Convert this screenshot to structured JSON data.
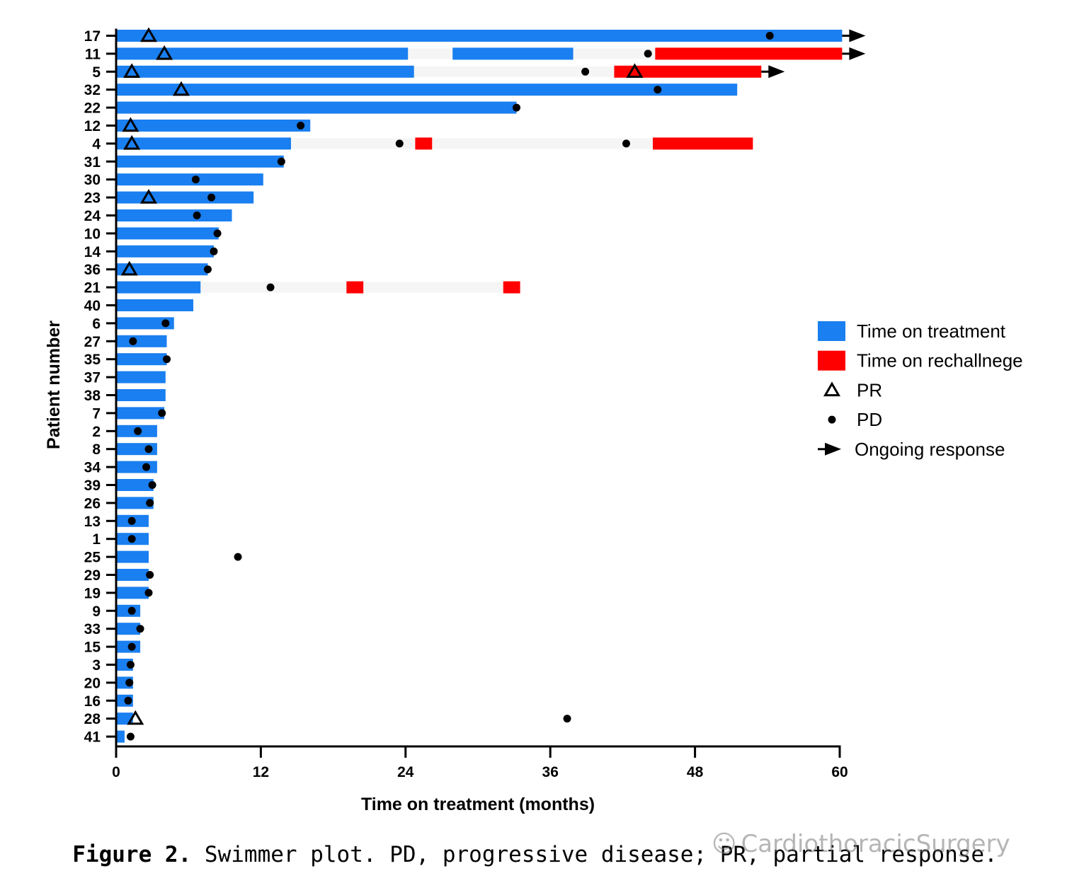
{
  "chart_data": {
    "type": "swimmer",
    "xlabel": "Time on treatment (months)",
    "ylabel": "Patient number",
    "xlim": [
      0,
      60
    ],
    "xticks": [
      0,
      12,
      24,
      36,
      48,
      60
    ],
    "legend": {
      "position": "right",
      "entries": [
        {
          "key": "treatment",
          "label": "Time on treatment"
        },
        {
          "key": "rechallenge",
          "label": "Time on rechallnege"
        },
        {
          "key": "pr",
          "label": "PR"
        },
        {
          "key": "pd",
          "label": "PD"
        },
        {
          "key": "ongoing",
          "label": "Ongoing response"
        }
      ]
    },
    "colors": {
      "treatment": "#1a7ff0",
      "rechallenge": "#ff0000",
      "marker": "#000000",
      "gap": "#f5f5f5"
    },
    "patients": [
      {
        "id": "17",
        "treatment": [
          [
            0,
            60.2
          ]
        ],
        "rechallenge": [],
        "pr": [
          2.7
        ],
        "pd": [
          54.2
        ],
        "ongoing": true
      },
      {
        "id": "11",
        "treatment": [
          [
            0,
            24.2
          ],
          [
            27.9,
            37.9
          ]
        ],
        "rechallenge": [
          [
            44.7,
            60.2
          ]
        ],
        "pr": [
          4.0
        ],
        "pd": [
          44.1
        ],
        "ongoing": true
      },
      {
        "id": "5",
        "treatment": [
          [
            0,
            24.7
          ]
        ],
        "rechallenge": [
          [
            41.3,
            53.5
          ]
        ],
        "pr": [
          1.3,
          43.0
        ],
        "pd": [
          38.9
        ],
        "ongoing": true
      },
      {
        "id": "32",
        "treatment": [
          [
            0,
            51.5
          ]
        ],
        "rechallenge": [],
        "pr": [
          5.4
        ],
        "pd": [
          44.9
        ],
        "ongoing": false
      },
      {
        "id": "22",
        "treatment": [
          [
            0,
            33.2
          ]
        ],
        "rechallenge": [],
        "pr": [],
        "pd": [
          33.2
        ],
        "ongoing": false
      },
      {
        "id": "12",
        "treatment": [
          [
            0,
            16.1
          ]
        ],
        "rechallenge": [],
        "pr": [
          1.2
        ],
        "pd": [
          15.3
        ],
        "ongoing": false
      },
      {
        "id": "4",
        "treatment": [
          [
            0,
            14.5
          ]
        ],
        "rechallenge": [
          [
            24.8,
            26.2
          ],
          [
            44.5,
            52.8
          ]
        ],
        "pr": [
          1.3
        ],
        "pd": [
          23.5,
          42.3
        ],
        "ongoing": false
      },
      {
        "id": "31",
        "treatment": [
          [
            0,
            13.9
          ]
        ],
        "rechallenge": [],
        "pr": [],
        "pd": [
          13.7
        ],
        "ongoing": false
      },
      {
        "id": "30",
        "treatment": [
          [
            0,
            12.2
          ]
        ],
        "rechallenge": [],
        "pr": [],
        "pd": [
          6.6
        ],
        "ongoing": false
      },
      {
        "id": "23",
        "treatment": [
          [
            0,
            11.4
          ]
        ],
        "rechallenge": [],
        "pr": [
          2.7
        ],
        "pd": [
          7.9
        ],
        "ongoing": false
      },
      {
        "id": "24",
        "treatment": [
          [
            0,
            9.6
          ]
        ],
        "rechallenge": [],
        "pr": [],
        "pd": [
          6.7
        ],
        "ongoing": false
      },
      {
        "id": "10",
        "treatment": [
          [
            0,
            8.5
          ]
        ],
        "rechallenge": [],
        "pr": [],
        "pd": [
          8.4
        ],
        "ongoing": false
      },
      {
        "id": "14",
        "treatment": [
          [
            0,
            8.1
          ]
        ],
        "rechallenge": [],
        "pr": [],
        "pd": [
          8.1
        ],
        "ongoing": false
      },
      {
        "id": "36",
        "treatment": [
          [
            0,
            7.6
          ]
        ],
        "rechallenge": [],
        "pr": [
          1.1
        ],
        "pd": [
          7.6
        ],
        "ongoing": false
      },
      {
        "id": "21",
        "treatment": [
          [
            0,
            7.0
          ]
        ],
        "rechallenge": [
          [
            19.1,
            20.5
          ],
          [
            32.1,
            33.5
          ]
        ],
        "pr": [],
        "pd": [
          12.8
        ],
        "ongoing": false
      },
      {
        "id": "40",
        "treatment": [
          [
            0,
            6.4
          ]
        ],
        "rechallenge": [],
        "pr": [],
        "pd": [],
        "ongoing": false
      },
      {
        "id": "6",
        "treatment": [
          [
            0,
            4.8
          ]
        ],
        "rechallenge": [],
        "pr": [],
        "pd": [
          4.1
        ],
        "ongoing": false
      },
      {
        "id": "27",
        "treatment": [
          [
            0,
            4.2
          ]
        ],
        "rechallenge": [],
        "pr": [],
        "pd": [
          1.4
        ],
        "ongoing": false
      },
      {
        "id": "35",
        "treatment": [
          [
            0,
            4.2
          ]
        ],
        "rechallenge": [],
        "pr": [],
        "pd": [
          4.2
        ],
        "ongoing": false
      },
      {
        "id": "37",
        "treatment": [
          [
            0,
            4.1
          ]
        ],
        "rechallenge": [],
        "pr": [],
        "pd": [],
        "ongoing": false
      },
      {
        "id": "38",
        "treatment": [
          [
            0,
            4.1
          ]
        ],
        "rechallenge": [],
        "pr": [],
        "pd": [],
        "ongoing": false
      },
      {
        "id": "7",
        "treatment": [
          [
            0,
            4.0
          ]
        ],
        "rechallenge": [],
        "pr": [],
        "pd": [
          3.8
        ],
        "ongoing": false
      },
      {
        "id": "2",
        "treatment": [
          [
            0,
            3.4
          ]
        ],
        "rechallenge": [],
        "pr": [],
        "pd": [
          1.8
        ],
        "ongoing": false
      },
      {
        "id": "8",
        "treatment": [
          [
            0,
            3.4
          ]
        ],
        "rechallenge": [],
        "pr": [],
        "pd": [
          2.7
        ],
        "ongoing": false
      },
      {
        "id": "34",
        "treatment": [
          [
            0,
            3.4
          ]
        ],
        "rechallenge": [],
        "pr": [],
        "pd": [
          2.5
        ],
        "ongoing": false
      },
      {
        "id": "39",
        "treatment": [
          [
            0,
            3.1
          ]
        ],
        "rechallenge": [],
        "pr": [],
        "pd": [
          3.0
        ],
        "ongoing": false
      },
      {
        "id": "26",
        "treatment": [
          [
            0,
            3.1
          ]
        ],
        "rechallenge": [],
        "pr": [],
        "pd": [
          2.8
        ],
        "ongoing": false
      },
      {
        "id": "13",
        "treatment": [
          [
            0,
            2.7
          ]
        ],
        "rechallenge": [],
        "pr": [],
        "pd": [
          1.3
        ],
        "ongoing": false
      },
      {
        "id": "1",
        "treatment": [
          [
            0,
            2.7
          ]
        ],
        "rechallenge": [],
        "pr": [],
        "pd": [
          1.3
        ],
        "ongoing": false
      },
      {
        "id": "25",
        "treatment": [
          [
            0,
            2.7
          ]
        ],
        "rechallenge": [],
        "pr": [],
        "pd": [
          10.1
        ],
        "ongoing": false
      },
      {
        "id": "29",
        "treatment": [
          [
            0,
            2.7
          ]
        ],
        "rechallenge": [],
        "pr": [],
        "pd": [
          2.8
        ],
        "ongoing": false
      },
      {
        "id": "19",
        "treatment": [
          [
            0,
            2.7
          ]
        ],
        "rechallenge": [],
        "pr": [],
        "pd": [
          2.7
        ],
        "ongoing": false
      },
      {
        "id": "9",
        "treatment": [
          [
            0,
            2.0
          ]
        ],
        "rechallenge": [],
        "pr": [],
        "pd": [
          1.3
        ],
        "ongoing": false
      },
      {
        "id": "33",
        "treatment": [
          [
            0,
            2.0
          ]
        ],
        "rechallenge": [],
        "pr": [],
        "pd": [
          2.0
        ],
        "ongoing": false
      },
      {
        "id": "15",
        "treatment": [
          [
            0,
            2.0
          ]
        ],
        "rechallenge": [],
        "pr": [],
        "pd": [
          1.3
        ],
        "ongoing": false
      },
      {
        "id": "3",
        "treatment": [
          [
            0,
            1.4
          ]
        ],
        "rechallenge": [],
        "pr": [],
        "pd": [
          1.2
        ],
        "ongoing": false
      },
      {
        "id": "20",
        "treatment": [
          [
            0,
            1.4
          ]
        ],
        "rechallenge": [],
        "pr": [],
        "pd": [
          1.1
        ],
        "ongoing": false
      },
      {
        "id": "16",
        "treatment": [
          [
            0,
            1.4
          ]
        ],
        "rechallenge": [],
        "pr": [],
        "pd": [
          1.0
        ],
        "ongoing": false
      },
      {
        "id": "28",
        "treatment": [
          [
            0,
            1.4
          ]
        ],
        "rechallenge": [],
        "pr": [
          1.6
        ],
        "pd": [
          37.4
        ],
        "ongoing": false
      },
      {
        "id": "41",
        "treatment": [
          [
            0,
            0.7
          ]
        ],
        "rechallenge": [],
        "pr": [],
        "pd": [
          1.2
        ],
        "ongoing": false
      }
    ]
  },
  "caption": {
    "label": "Figure 2.",
    "text": " Swimmer plot. PD, progressive disease; PR, partial response."
  },
  "watermark": {
    "text": "CardiothoracicSurgery",
    "icon": "wechat-icon"
  }
}
